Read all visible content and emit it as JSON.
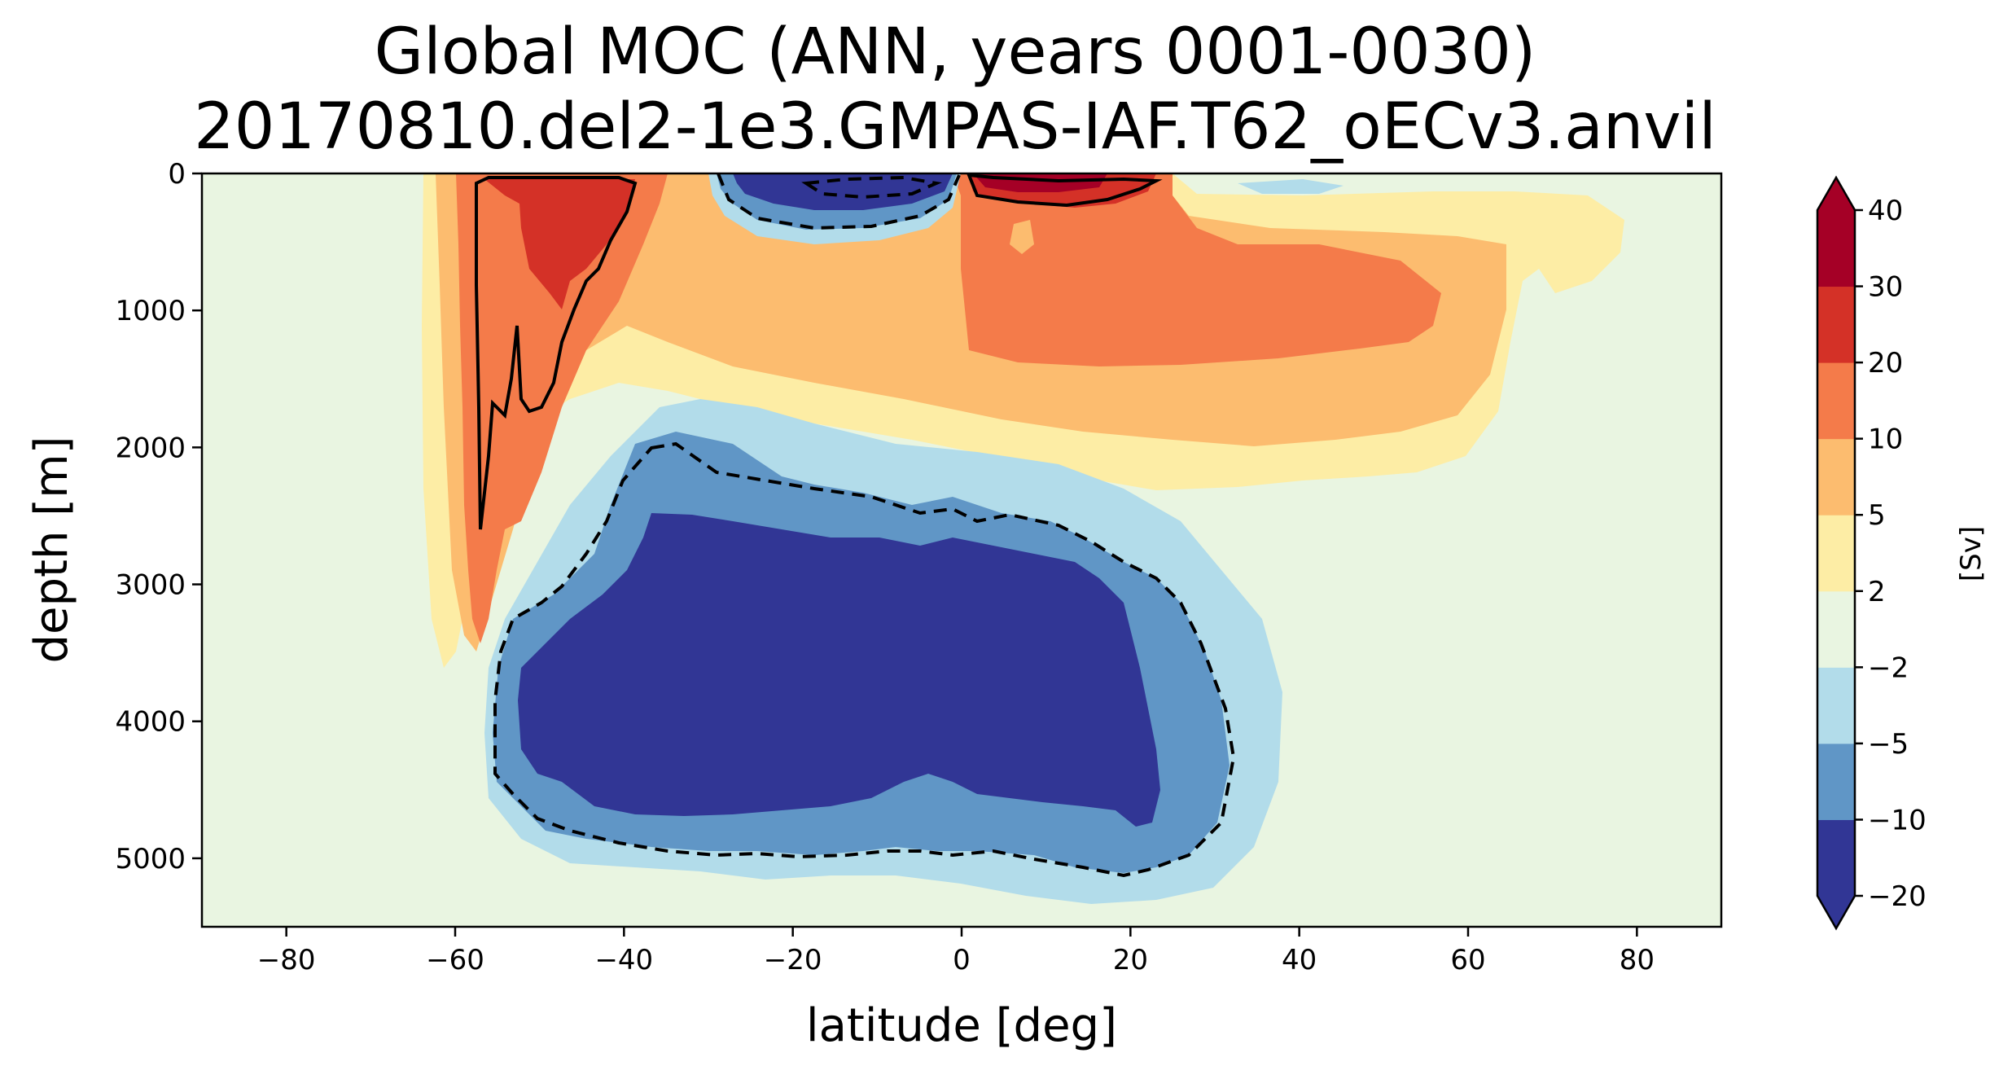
{
  "chart_data": {
    "type": "contour",
    "title": "Global MOC (ANN, years 0001-0030)",
    "subtitle": "20170810.del2-1e3.GMPAS-IAF.T62_oECv3.anvil",
    "xlabel": "latitude [deg]",
    "ylabel": "depth [m]",
    "xlim": [
      -90,
      90
    ],
    "ylim": [
      5500,
      0
    ],
    "x_ticks": [
      -80,
      -60,
      -40,
      -20,
      0,
      20,
      40,
      60,
      80
    ],
    "x_tick_labels": [
      "−80",
      "−60",
      "−40",
      "−20",
      "0",
      "20",
      "40",
      "60",
      "80"
    ],
    "y_ticks": [
      0,
      1000,
      2000,
      3000,
      4000,
      5000
    ],
    "y_tick_labels": [
      "0",
      "1000",
      "2000",
      "3000",
      "4000",
      "5000"
    ],
    "colorbar": {
      "units": "[Sv]",
      "levels": [
        -20,
        -10,
        -5,
        -2,
        2,
        5,
        10,
        20,
        30,
        40
      ],
      "level_labels": [
        "−20",
        "−10",
        "−5",
        "−2",
        "2",
        "5",
        "10",
        "20",
        "30",
        "40"
      ],
      "colors": [
        "#313695",
        "#6096c6",
        "#b2dcea",
        "#e9f5e1",
        "#fdeda5",
        "#fcbc6f",
        "#f47b4a",
        "#d43127",
        "#a50026"
      ],
      "extend": "both",
      "under_color": "#313695",
      "over_color": "#a50026"
    },
    "features": [
      {
        "name": "southern-ocean-deacon-cell",
        "sign": "positive",
        "lat_range": [
          -65,
          -30
        ],
        "depth_range": [
          0,
          3700
        ],
        "peak_sv": 20
      },
      {
        "name": "tropical-cell-south",
        "sign": "negative",
        "lat_range": [
          -30,
          0
        ],
        "depth_range": [
          0,
          400
        ],
        "peak_sv": -20
      },
      {
        "name": "tropical-cell-north",
        "sign": "positive",
        "lat_range": [
          0,
          28
        ],
        "depth_range": [
          0,
          300
        ],
        "peak_sv": 30
      },
      {
        "name": "upper-overturning-cell",
        "sign": "positive",
        "lat_range": [
          -40,
          65
        ],
        "depth_range": [
          0,
          2300
        ],
        "peak_sv": 10
      },
      {
        "name": "abyssal-cell",
        "sign": "negative",
        "lat_range": [
          -56,
          33
        ],
        "depth_range": [
          2000,
          5300
        ],
        "peak_sv": -20
      }
    ],
    "contour_lines": [
      {
        "level": 20,
        "style": "solid"
      },
      {
        "level": -10,
        "style": "dashed"
      }
    ]
  }
}
